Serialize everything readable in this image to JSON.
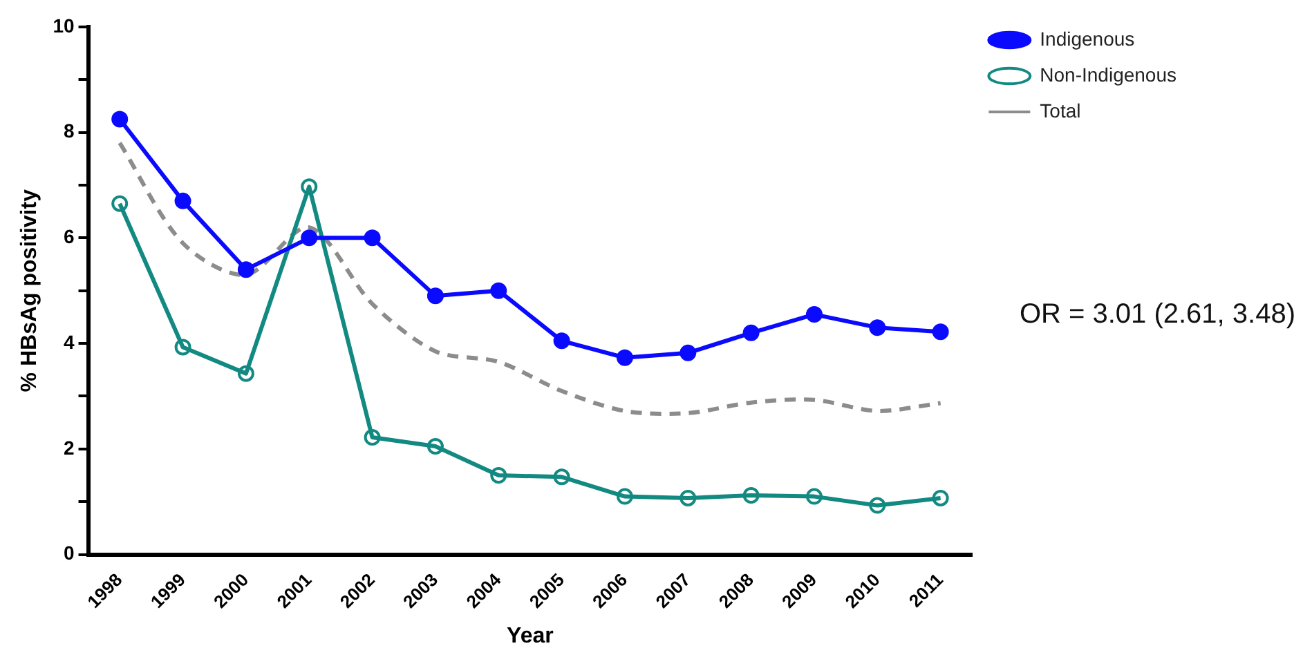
{
  "chart_data": {
    "type": "line",
    "xlabel": "Year",
    "ylabel": "% HBsAg positivity",
    "categories": [
      "1998",
      "1999",
      "2000",
      "2001",
      "2002",
      "2003",
      "2004",
      "2005",
      "2006",
      "2007",
      "2008",
      "2009",
      "2010",
      "2011"
    ],
    "series": [
      {
        "name": "Indigenous",
        "color": "#0a0aff",
        "marker": "circle",
        "line_style": "solid",
        "values": [
          8.25,
          6.7,
          5.4,
          6.0,
          6.0,
          4.9,
          5.0,
          4.05,
          3.73,
          3.82,
          4.2,
          4.55,
          4.3,
          4.22
        ]
      },
      {
        "name": "Non-Indigenous",
        "color": "#128a82",
        "marker": "circle",
        "line_style": "solid",
        "values": [
          6.65,
          3.93,
          3.43,
          6.97,
          2.22,
          2.05,
          1.5,
          1.47,
          1.1,
          1.07,
          1.12,
          1.1,
          0.93,
          1.07
        ]
      },
      {
        "name": "Total",
        "color": "#8c8c8c",
        "marker": "none",
        "line_style": "dashed",
        "values": [
          7.8,
          5.9,
          5.3,
          6.2,
          4.75,
          3.85,
          3.65,
          3.1,
          2.72,
          2.68,
          2.88,
          2.93,
          2.72,
          2.87
        ]
      }
    ],
    "ylim": [
      0,
      10
    ],
    "yticks": [
      0,
      {
        "value": 1,
        "label": null
      },
      2,
      {
        "value": 3,
        "label": null
      },
      4,
      {
        "value": 5,
        "label": null
      },
      6,
      {
        "value": 7,
        "label": null
      },
      8,
      {
        "value": 9,
        "label": null
      },
      10
    ],
    "grid": false,
    "legend": "top right",
    "annotations": [
      "OR = 3.01 (2.61, 3.48)"
    ]
  }
}
